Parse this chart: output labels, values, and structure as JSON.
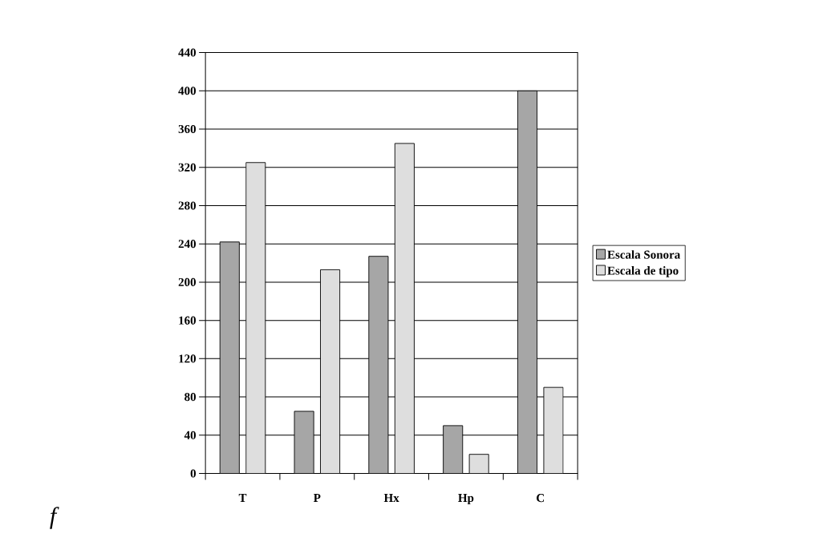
{
  "chart_data": {
    "type": "bar",
    "categories": [
      "T",
      "P",
      "Hx",
      "Hp",
      "C"
    ],
    "series": [
      {
        "name": "Escala Sonora",
        "color": "#a6a6a6",
        "values": [
          242,
          65,
          227,
          50,
          400
        ]
      },
      {
        "name": "Escala de tipo",
        "color": "#dedede",
        "values": [
          325,
          213,
          345,
          20,
          90
        ]
      }
    ],
    "ylim": [
      0,
      440
    ],
    "yticks": [
      0,
      40,
      80,
      120,
      160,
      200,
      240,
      280,
      320,
      360,
      400,
      440
    ],
    "grid": "y",
    "legend": "right",
    "annotations": [
      "f"
    ]
  }
}
